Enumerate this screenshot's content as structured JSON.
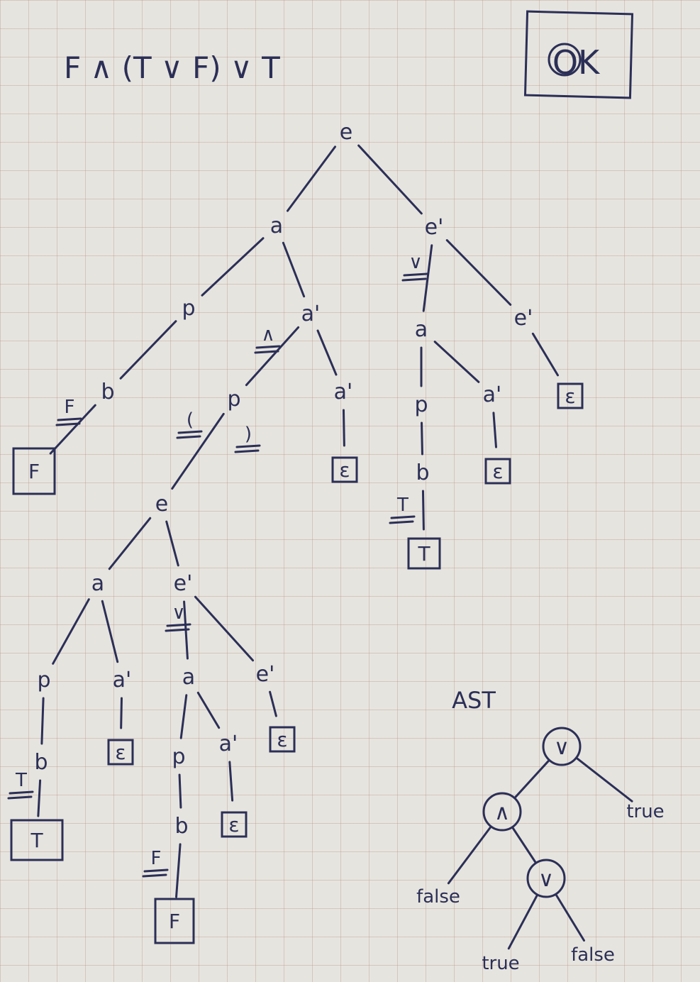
{
  "formula": "F ∧ (T ∨ F) ∨ T",
  "ok_label": "OK",
  "parse_tree": {
    "nodes": [
      {
        "id": "n0",
        "label": "e"
      },
      {
        "id": "n1",
        "label": "a"
      },
      {
        "id": "n2",
        "label": "e'"
      },
      {
        "id": "n3",
        "label": "p"
      },
      {
        "id": "n4",
        "label": "a'"
      },
      {
        "id": "n5",
        "label": "b"
      },
      {
        "id": "n6",
        "label": "F",
        "boxed": true
      },
      {
        "id": "n7",
        "label": "p"
      },
      {
        "id": "n8",
        "label": "a'"
      },
      {
        "id": "n9",
        "label": "ε",
        "boxed": true
      },
      {
        "id": "n10",
        "label": "e"
      },
      {
        "id": "n11",
        "label": "a"
      },
      {
        "id": "n12",
        "label": "e'"
      },
      {
        "id": "n13",
        "label": "p"
      },
      {
        "id": "n14",
        "label": "a'"
      },
      {
        "id": "n15",
        "label": "b"
      },
      {
        "id": "n16",
        "label": "T",
        "boxed": true
      },
      {
        "id": "n17",
        "label": "ε",
        "boxed": true
      },
      {
        "id": "n18",
        "label": "a"
      },
      {
        "id": "n19",
        "label": "e'"
      },
      {
        "id": "n20",
        "label": "ε",
        "boxed": true
      },
      {
        "id": "n21",
        "label": "p"
      },
      {
        "id": "n22",
        "label": "a'"
      },
      {
        "id": "n23",
        "label": "b"
      },
      {
        "id": "n24",
        "label": "F",
        "boxed": true
      },
      {
        "id": "n25",
        "label": "ε",
        "boxed": true
      },
      {
        "id": "n26",
        "label": "a"
      },
      {
        "id": "n27",
        "label": "e'"
      },
      {
        "id": "n28",
        "label": "p"
      },
      {
        "id": "n29",
        "label": "a'"
      },
      {
        "id": "n30",
        "label": "b"
      },
      {
        "id": "n31",
        "label": "T",
        "boxed": true
      },
      {
        "id": "n32",
        "label": "ε",
        "boxed": true
      },
      {
        "id": "n33",
        "label": "ε",
        "boxed": true
      }
    ],
    "edges": [
      [
        "n0",
        "n1"
      ],
      [
        "n0",
        "n2"
      ],
      [
        "n1",
        "n3"
      ],
      [
        "n1",
        "n4"
      ],
      [
        "n3",
        "n5"
      ],
      [
        "n5",
        "n6"
      ],
      [
        "n4",
        "n7"
      ],
      [
        "n4",
        "n8"
      ],
      [
        "n8",
        "n9"
      ],
      [
        "n7",
        "n10"
      ],
      [
        "n10",
        "n11"
      ],
      [
        "n10",
        "n12"
      ],
      [
        "n11",
        "n13"
      ],
      [
        "n11",
        "n14"
      ],
      [
        "n13",
        "n15"
      ],
      [
        "n15",
        "n16"
      ],
      [
        "n14",
        "n17"
      ],
      [
        "n12",
        "n18"
      ],
      [
        "n12",
        "n19"
      ],
      [
        "n19",
        "n20"
      ],
      [
        "n18",
        "n21"
      ],
      [
        "n18",
        "n22"
      ],
      [
        "n21",
        "n23"
      ],
      [
        "n23",
        "n24"
      ],
      [
        "n22",
        "n25"
      ],
      [
        "n2",
        "n26"
      ],
      [
        "n2",
        "n27"
      ],
      [
        "n26",
        "n28"
      ],
      [
        "n26",
        "n29"
      ],
      [
        "n28",
        "n30"
      ],
      [
        "n30",
        "n31"
      ],
      [
        "n29",
        "n32"
      ],
      [
        "n27",
        "n33"
      ]
    ],
    "terminal_marks": [
      "∨",
      "F",
      "∧",
      "(",
      ")",
      "T",
      "∨",
      "F",
      "T"
    ]
  },
  "ast": {
    "title": "AST",
    "nodes": [
      {
        "id": "r",
        "label": "∨",
        "circled": true
      },
      {
        "id": "and",
        "label": "∧",
        "circled": true
      },
      {
        "id": "t1",
        "label": "true"
      },
      {
        "id": "f1",
        "label": "false"
      },
      {
        "id": "or2",
        "label": "∨",
        "circled": true
      },
      {
        "id": "t2",
        "label": "true"
      },
      {
        "id": "f2",
        "label": "false"
      }
    ],
    "edges": [
      [
        "r",
        "and"
      ],
      [
        "r",
        "t1"
      ],
      [
        "and",
        "f1"
      ],
      [
        "and",
        "or2"
      ],
      [
        "or2",
        "t2"
      ],
      [
        "or2",
        "f2"
      ]
    ]
  }
}
